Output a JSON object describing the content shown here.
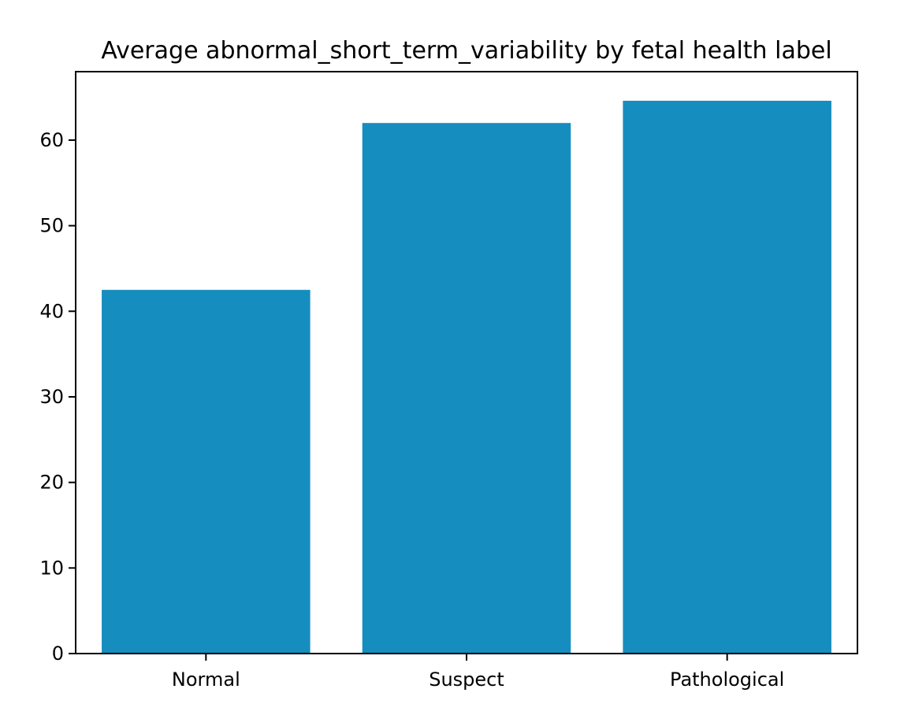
{
  "chart_data": {
    "type": "bar",
    "title": "Average abnormal_short_term_variability by fetal health label",
    "xlabel": "",
    "ylabel": "",
    "categories": [
      "Normal",
      "Suspect",
      "Pathological"
    ],
    "values": [
      42.5,
      62.0,
      64.6
    ],
    "ylim": [
      0,
      68
    ],
    "yticks": [
      0,
      10,
      20,
      30,
      40,
      50,
      60
    ],
    "bar_color": "#168dbf",
    "grid": false,
    "legend": "none"
  }
}
